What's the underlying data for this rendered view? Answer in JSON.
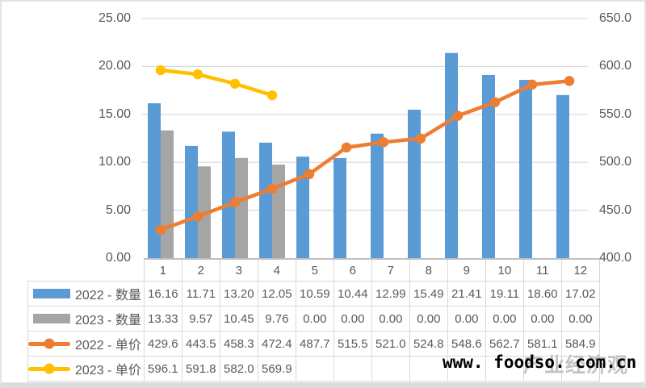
{
  "watermark": {
    "url_text": "www. foodso. com.cn",
    "faint_text": "产业经济观察"
  },
  "chart_data": {
    "type": "bar+line combo",
    "title": "",
    "categories": [
      "1",
      "2",
      "3",
      "4",
      "5",
      "6",
      "7",
      "8",
      "9",
      "10",
      "11",
      "12"
    ],
    "grid": true,
    "legend_position": "left table column",
    "left_axis": {
      "min": 0,
      "max": 25,
      "ticks": [
        "25.00",
        "20.00",
        "15.00",
        "10.00",
        "5.00",
        "0.00"
      ]
    },
    "right_axis": {
      "min": 400,
      "max": 650,
      "ticks": [
        "650.0",
        "600.0",
        "550.0",
        "500.0",
        "450.0",
        "400.0"
      ]
    },
    "series": [
      {
        "name": "2022 - 数量",
        "type": "bar",
        "axis": "left",
        "color": "#5B9BD5",
        "display": [
          "16.16",
          "11.71",
          "13.20",
          "12.05",
          "10.59",
          "10.44",
          "12.99",
          "15.49",
          "21.41",
          "19.11",
          "18.60",
          "17.02"
        ],
        "values": [
          16.16,
          11.71,
          13.2,
          12.05,
          10.59,
          10.44,
          12.99,
          15.49,
          21.41,
          19.11,
          18.6,
          17.02
        ]
      },
      {
        "name": "2023 - 数量",
        "type": "bar",
        "axis": "left",
        "color": "#A5A5A5",
        "display": [
          "13.33",
          "9.57",
          "10.45",
          "9.76",
          "0.00",
          "0.00",
          "0.00",
          "0.00",
          "0.00",
          "0.00",
          "0.00",
          "0.00"
        ],
        "values": [
          13.33,
          9.57,
          10.45,
          9.76,
          0,
          0,
          0,
          0,
          0,
          0,
          0,
          0
        ]
      },
      {
        "name": "2022 - 单价",
        "type": "line",
        "axis": "right",
        "color": "#ED7D31",
        "display": [
          "429.6",
          "443.5",
          "458.3",
          "472.4",
          "487.7",
          "515.5",
          "521.0",
          "524.8",
          "548.6",
          "562.7",
          "581.1",
          "584.9"
        ],
        "values": [
          429.6,
          443.5,
          458.3,
          472.4,
          487.7,
          515.5,
          521.0,
          524.8,
          548.6,
          562.7,
          581.1,
          584.9
        ]
      },
      {
        "name": "2023 - 单价",
        "type": "line",
        "axis": "right",
        "color": "#FFC000",
        "display": [
          "596.1",
          "591.8",
          "582.0",
          "569.9",
          "",
          "",
          "",
          "",
          "",
          "",
          "",
          ""
        ],
        "values": [
          596.1,
          591.8,
          582.0,
          569.9,
          null,
          null,
          null,
          null,
          null,
          null,
          null,
          null
        ]
      }
    ]
  }
}
